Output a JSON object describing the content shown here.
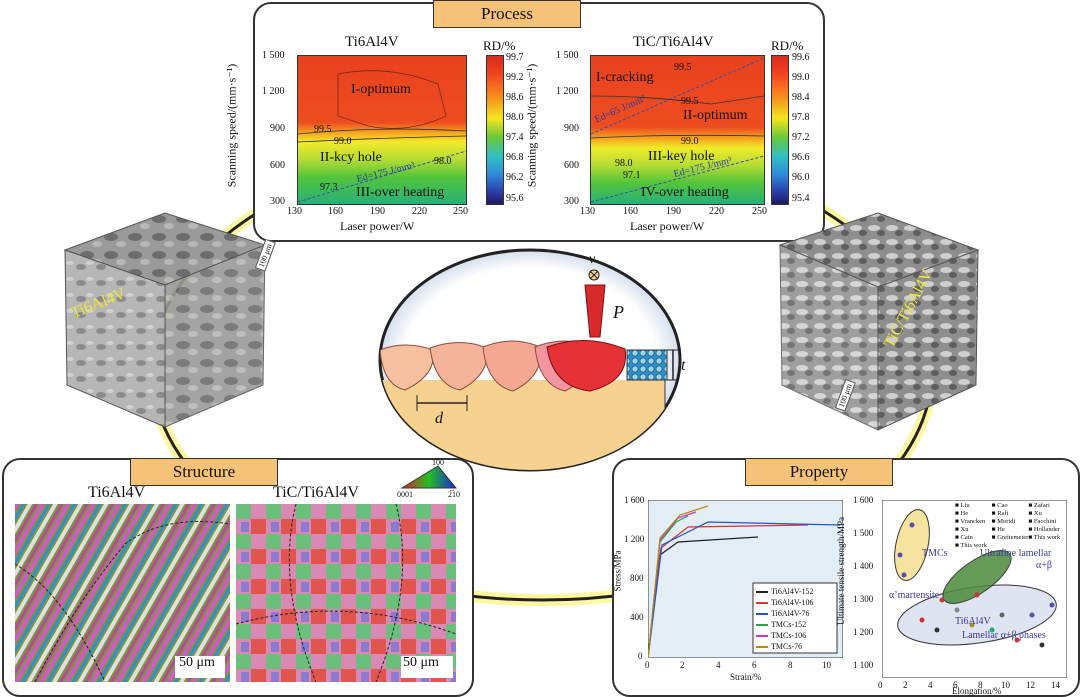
{
  "process": {
    "title": "Process",
    "left": {
      "title": "Ti6Al4V",
      "ylabel": "Scanning speed/(mm·s⁻¹)",
      "xlabel": "Laser power/W",
      "xticks": [
        "130",
        "160",
        "190",
        "220",
        "250"
      ],
      "yticks": [
        "1 500",
        "1 200",
        "900",
        "600",
        "300"
      ],
      "rd_label": "RD/%",
      "cbar_ticks": [
        "99.7",
        "99.2",
        "98.6",
        "98.0",
        "97.4",
        "96.8",
        "96.2",
        "95.6"
      ],
      "regions": [
        "I-optimum",
        "II-kcy hole",
        "III-over heating"
      ],
      "contours": [
        "99.5",
        "99.0",
        "98.0",
        "97.3"
      ],
      "ed_label": "Ed=175 J/mm³"
    },
    "right": {
      "title": "TiC/Ti6Al4V",
      "ylabel": "Scanning speed/(mm·s⁻¹)",
      "xlabel": "Laser power/W",
      "xticks": [
        "130",
        "160",
        "190",
        "220",
        "250"
      ],
      "yticks": [
        "1 500",
        "1 200",
        "900",
        "600",
        "300"
      ],
      "rd_label": "RD/%",
      "cbar_ticks": [
        "99.6",
        "99.0",
        "98.4",
        "97.8",
        "97.2",
        "96.6",
        "96.0",
        "95.4"
      ],
      "regions": [
        "I-cracking",
        "II-optimum",
        "III-key hole",
        "IV-over heating"
      ],
      "contours": [
        "99.5",
        "99.5",
        "99.0",
        "98.0",
        "97.1"
      ],
      "ed_label1": "Ed=65 J/mm³",
      "ed_label2": "Ed=175 J/mm³"
    }
  },
  "cubes": {
    "left": {
      "label": "Ti6Al4V",
      "scale": "100 μm"
    },
    "right": {
      "label": "TiC/Ti6Al4V",
      "scale": "100 μm"
    }
  },
  "schematic": {
    "v": "v",
    "p": "P",
    "t": "t",
    "d": "d"
  },
  "structure": {
    "title": "Structure",
    "left_title": "Ti6Al4V",
    "right_title": "TiC/Ti6Al4V",
    "scale_left": "50 μm",
    "scale_right": "50 μm",
    "ipf": [
      "10̅0",
      "0001",
      "2̅10"
    ]
  },
  "property": {
    "title": "Property",
    "stress_ylabel": "Stress/MPa",
    "stress_xlabel": "Strain/%",
    "stress_yticks": [
      "1 600",
      "1 200",
      "800",
      "400",
      "0"
    ],
    "stress_xticks": [
      "0",
      "2",
      "4",
      "6",
      "8",
      "10"
    ],
    "stress_legend": [
      "Ti6Al4V-152",
      "Ti6Al4V-106",
      "Ti6Al4V-76",
      "TMCs-152",
      "TMCs-106",
      "TMCs-76"
    ],
    "uts_ylabel": "Ultimate tensile strength/MPa",
    "uts_xlabel": "Elongation/%",
    "uts_yticks": [
      "1 600",
      "1 500",
      "1 400",
      "1 300",
      "1 200",
      "1 100"
    ],
    "uts_xticks": [
      "0",
      "2",
      "4",
      "6",
      "8",
      "10",
      "12",
      "14"
    ],
    "uts_legend": [
      "Liu",
      "Cao",
      "Zafari",
      "He",
      "Rafi",
      "Xu",
      "Vrancken",
      "Moridi",
      "Facchini",
      "Xu",
      "He",
      "Hollander",
      "Cain",
      "Greitemeier",
      "This work",
      "This work"
    ],
    "uts_annotations": [
      "TMCs",
      "Ultrafine lamellar",
      "α+β",
      "α’martensite",
      "Ti6Al4V",
      "Lamellar α+β phases"
    ]
  },
  "colors": {
    "tab": "#f5c277",
    "ring": "#fff9a8",
    "ring_stroke": "#222"
  }
}
